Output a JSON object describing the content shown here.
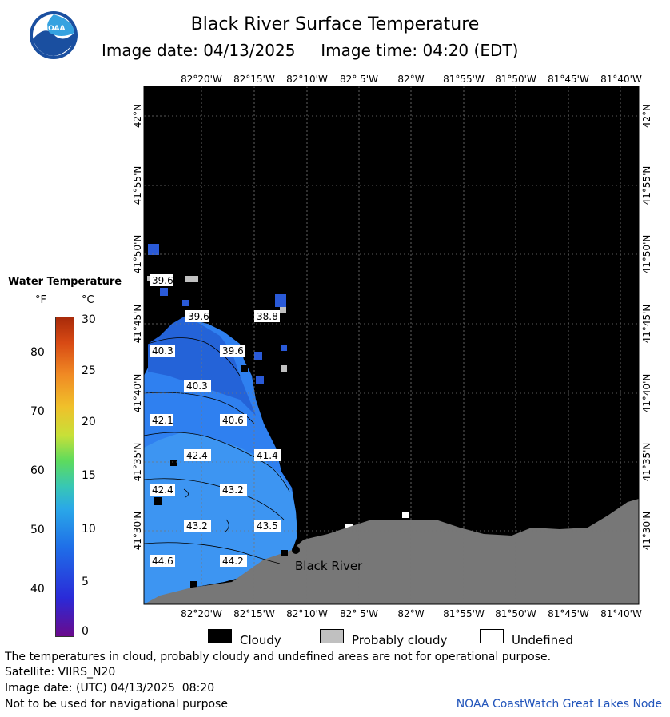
{
  "header": {
    "title": "Black River Surface Temperature",
    "subtitle": "Image date: 04/13/2025     Image time: 04:20 (EDT)",
    "logo_text": "NOAA"
  },
  "map": {
    "lon_labels": [
      "82°20'W",
      "82°15'W",
      "82°10'W",
      "82° 5'W",
      "82°W",
      "81°55'W",
      "81°50'W",
      "81°45'W",
      "81°40'W"
    ],
    "lat_labels": [
      "42°N",
      "41°55'N",
      "41°50'N",
      "41°45'N",
      "41°40'N",
      "41°35'N",
      "41°30'N"
    ],
    "location_label": "Black River",
    "temperature_labels": [
      "39.6",
      "39.6",
      "38.8",
      "40.3",
      "39.6",
      "40.3",
      "42.1",
      "40.6",
      "42.4",
      "41.4",
      "42.4",
      "43.2",
      "43.2",
      "43.5",
      "44.6",
      "44.2"
    ],
    "colors": {
      "cloud": "#000000",
      "land": "#777777",
      "probably_cloudy": "#c0c0c0"
    }
  },
  "legend": {
    "title": "Water Temperature",
    "unit_f": "°F",
    "unit_c": "°C",
    "f_ticks": [
      "80",
      "70",
      "60",
      "50",
      "40"
    ],
    "c_ticks": [
      "30",
      "25",
      "20",
      "15",
      "10",
      "5",
      "0"
    ]
  },
  "key": {
    "cloudy": "Cloudy",
    "probably_cloudy": "Probably cloudy",
    "undefined": "Undefined"
  },
  "footer": {
    "disclaimer": "The temperatures in cloud, probably cloudy and undefined areas are not for operational purpose.",
    "satellite": "Satellite: VIIRS_N20",
    "image_date_utc": "Image date: (UTC) 04/13/2025  08:20",
    "navigation": "Not to be used for navigational purpose",
    "credit": "NOAA CoastWatch Great Lakes Node"
  }
}
